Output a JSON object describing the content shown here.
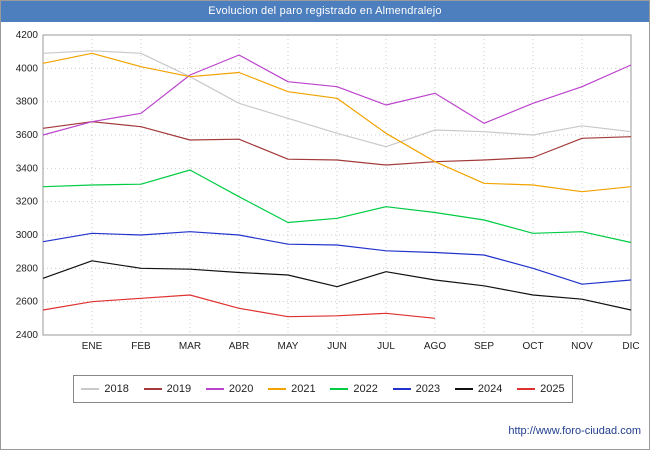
{
  "title": "Evolucion del paro registrado en Almendralejo",
  "footer": {
    "url": "http://www.foro-ciudad.com"
  },
  "colors": {
    "titlebar_bg": "#4d7ebd",
    "titlebar_text": "#ffffff",
    "grid": "#cccccc",
    "axis_border": "#999999",
    "url_text": "#23408f"
  },
  "chart_data": {
    "type": "line",
    "title": "Evolucion del paro registrado en Almendralejo",
    "x_labels": [
      "ENE",
      "FEB",
      "MAR",
      "ABR",
      "MAY",
      "JUN",
      "JUL",
      "AGO",
      "SEP",
      "OCT",
      "NOV",
      "DIC"
    ],
    "ylim": [
      2400,
      4200
    ],
    "yticks": [
      4200,
      4000,
      3800,
      3600,
      3400,
      3200,
      3000,
      2800,
      2600,
      2400
    ],
    "grid": "dotted",
    "legend_position": "bottom",
    "note": "Each series has 13 points: the first sits on the left axis (previous December), the remaining 12 align with the month labels ENE-DIC. 2025 ends at AGO.",
    "series": [
      {
        "name": "2018",
        "color": "#c9c9c9",
        "values": [
          4090,
          4105,
          4090,
          3950,
          3790,
          3700,
          3610,
          3530,
          3630,
          3620,
          3600,
          3655,
          3620
        ]
      },
      {
        "name": "2019",
        "color": "#a33a3a",
        "values": [
          3640,
          3680,
          3650,
          3570,
          3575,
          3455,
          3450,
          3420,
          3440,
          3450,
          3465,
          3580,
          3590
        ]
      },
      {
        "name": "2020",
        "color": "#bb44cc",
        "values": [
          3600,
          3680,
          3730,
          3960,
          4080,
          3920,
          3890,
          3780,
          3850,
          3670,
          3790,
          3890,
          4020
        ]
      },
      {
        "name": "2021",
        "color": "#f2a300",
        "values": [
          4030,
          4090,
          4010,
          3950,
          3975,
          3860,
          3820,
          3610,
          3440,
          3310,
          3300,
          3260,
          3290
        ]
      },
      {
        "name": "2022",
        "color": "#00cc44",
        "values": [
          3290,
          3300,
          3305,
          3390,
          3230,
          3075,
          3100,
          3170,
          3135,
          3090,
          3010,
          3020,
          2955
        ]
      },
      {
        "name": "2023",
        "color": "#2233cc",
        "values": [
          2960,
          3010,
          3000,
          3020,
          3000,
          2945,
          2940,
          2905,
          2895,
          2880,
          2800,
          2705,
          2730
        ]
      },
      {
        "name": "2024",
        "color": "#111111",
        "values": [
          2740,
          2845,
          2800,
          2795,
          2775,
          2760,
          2690,
          2780,
          2730,
          2695,
          2640,
          2615,
          2550
        ]
      },
      {
        "name": "2025",
        "color": "#e03131",
        "values": [
          2550,
          2600,
          2620,
          2640,
          2560,
          2510,
          2515,
          2530,
          2500,
          null,
          null,
          null,
          null
        ]
      }
    ]
  }
}
